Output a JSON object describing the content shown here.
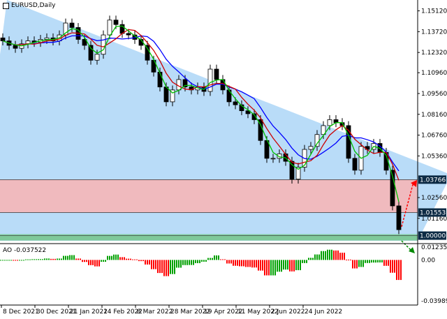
{
  "symbol_title": "EURUSD,Daily",
  "ao_label": "AO -0.037522",
  "colors": {
    "channel": "#b9dcf8",
    "zone": "#f9b4b4",
    "support": "#7fc99a",
    "bull": "#000000",
    "bear": "#000000",
    "ma_slow": "#0000ff",
    "ma_mid": "#cc0000",
    "ma_fast": "#00c000",
    "ao_up": "#00a000",
    "ao_down": "#ff0000",
    "label_bg": "#0c2a44"
  },
  "chart_data": {
    "type": "candlestick",
    "price_ticks": [
      "1.15120",
      "1.13720",
      "1.12320",
      "1.10960",
      "1.09560",
      "1.08160",
      "1.06760",
      "1.05360",
      "1.02560",
      "1.01160"
    ],
    "price_range": [
      0.9965,
      1.1585
    ],
    "levels": [
      {
        "value": "1.03766",
        "highlight": true
      },
      {
        "value": "1.01553",
        "highlight": true
      },
      {
        "value": "1.00000",
        "highlight": true
      }
    ],
    "zone": [
      1.01553,
      1.03766
    ],
    "date_ticks": [
      "8 Dec 2021",
      "30 Dec 2021",
      "21 Jan 2022",
      "14 Feb 2022",
      "8 Mar 2022",
      "28 Mar 2022",
      "19 Apr 2022",
      "11 May 2022",
      "2 Jun 2022",
      "24 Jun 2022"
    ],
    "closes": [
      1.131,
      1.128,
      1.126,
      1.129,
      1.131,
      1.13,
      1.132,
      1.133,
      1.131,
      1.135,
      1.143,
      1.14,
      1.132,
      1.128,
      1.118,
      1.122,
      1.135,
      1.145,
      1.142,
      1.136,
      1.135,
      1.132,
      1.128,
      1.118,
      1.11,
      1.1,
      1.09,
      1.098,
      1.105,
      1.1,
      1.098,
      1.1,
      1.097,
      1.112,
      1.105,
      1.098,
      1.09,
      1.088,
      1.084,
      1.082,
      1.078,
      1.064,
      1.052,
      1.052,
      1.055,
      1.05,
      1.038,
      1.046,
      1.058,
      1.06,
      1.068,
      1.074,
      1.078,
      1.076,
      1.074,
      1.052,
      1.044,
      1.06,
      1.058,
      1.062,
      1.056,
      1.044,
      1.02,
      1.004
    ],
    "ao_ticks": [
      "0.012353",
      "0.00",
      "-0.039897"
    ],
    "ao_range": [
      -0.0425,
      0.0152
    ]
  }
}
